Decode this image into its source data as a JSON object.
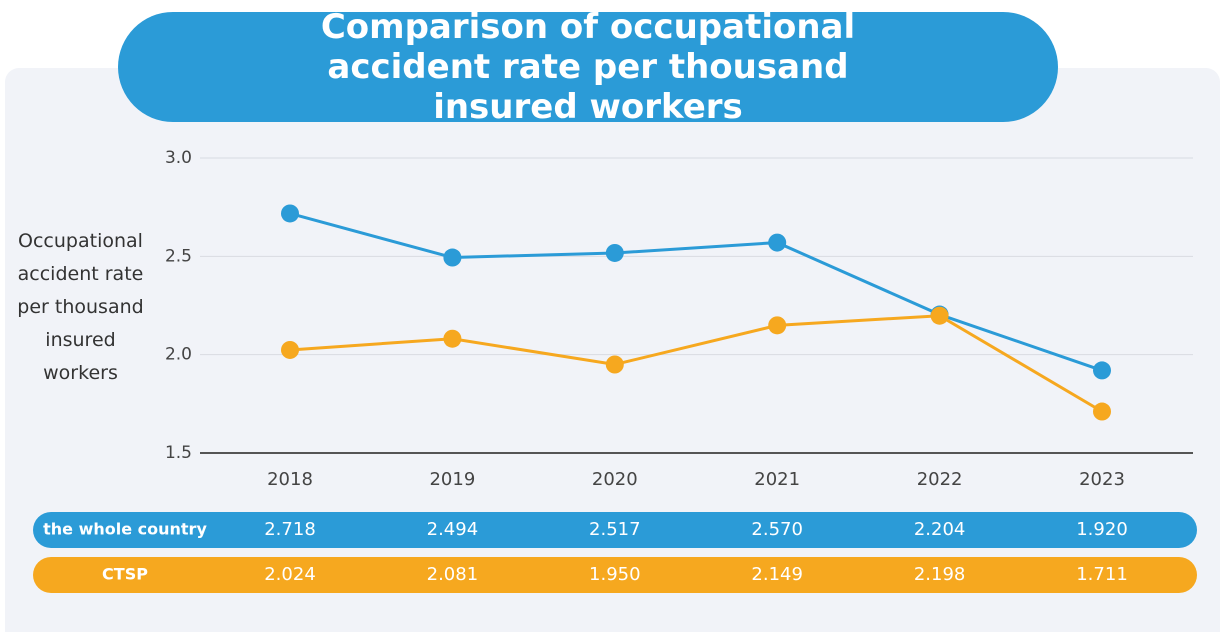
{
  "chart_data": {
    "type": "line",
    "title": "Comparison of occupational accident rate per thousand insured workers",
    "ylabel": "Occupational accident rate per thousand insured workers",
    "categories": [
      "2018",
      "2019",
      "2020",
      "2021",
      "2022",
      "2023"
    ],
    "series": [
      {
        "name": "the whole country",
        "color": "#2b9bd7",
        "values": [
          2.718,
          2.494,
          2.517,
          2.57,
          2.204,
          1.92
        ],
        "value_labels": [
          "2.718",
          "2.494",
          "2.517",
          "2.570",
          "2.204",
          "1.920"
        ]
      },
      {
        "name": "CTSP",
        "color": "#f6a81f",
        "values": [
          2.024,
          2.081,
          1.95,
          2.149,
          2.198,
          1.711
        ],
        "value_labels": [
          "2.024",
          "2.081",
          "1.950",
          "2.149",
          "2.198",
          "1.711"
        ]
      }
    ],
    "ylim": [
      1.5,
      3.0
    ],
    "yticks": [
      {
        "value": 1.5,
        "label": "1.5"
      },
      {
        "value": 2,
        "label": "2.0"
      },
      {
        "value": 2.5,
        "label": "2.5"
      },
      {
        "value": 3,
        "label": "3.0"
      }
    ],
    "grid": true
  }
}
